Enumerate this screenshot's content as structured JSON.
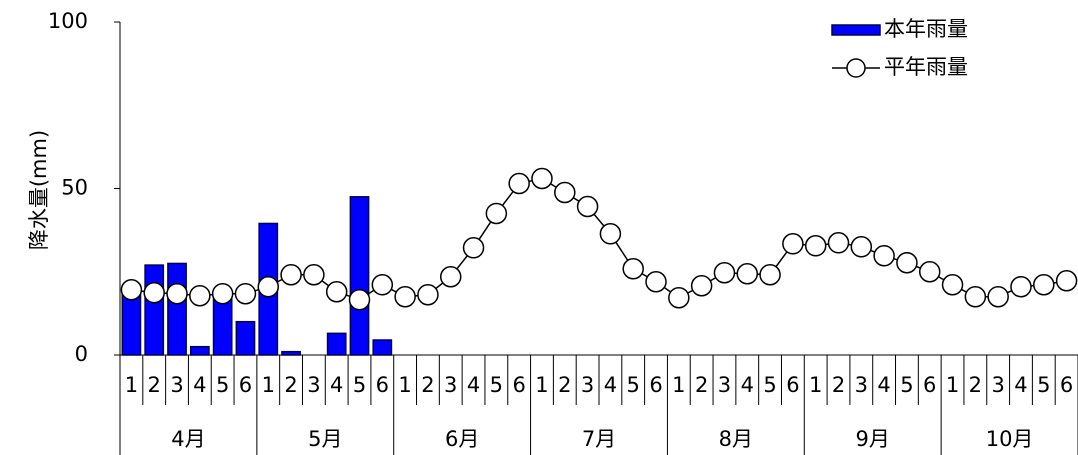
{
  "chart_data": {
    "type": "combo",
    "y_label": "降水量(mm)",
    "categories": [
      "1",
      "2",
      "3",
      "4",
      "5",
      "6",
      "1",
      "2",
      "3",
      "4",
      "5",
      "6",
      "1",
      "2",
      "3",
      "4",
      "5",
      "6",
      "1",
      "2",
      "3",
      "4",
      "5",
      "6",
      "1",
      "2",
      "3",
      "4",
      "5",
      "6",
      "1",
      "2",
      "3",
      "4",
      "5",
      "6",
      "1",
      "2",
      "3",
      "4",
      "5",
      "6"
    ],
    "months": [
      "4月",
      "5月",
      "6月",
      "7月",
      "8月",
      "9月",
      "10月"
    ],
    "ylim": [
      0,
      100
    ],
    "yticks": [
      0,
      50,
      100
    ],
    "legend": "upper right",
    "series": [
      {
        "name": "本年雨量",
        "type": "bar",
        "color": "#0000ff",
        "values": [
          19,
          27,
          27.5,
          2.5,
          18,
          10,
          39.5,
          1,
          0,
          6.5,
          47.5,
          4.5,
          null,
          null,
          null,
          null,
          null,
          null,
          null,
          null,
          null,
          null,
          null,
          null,
          null,
          null,
          null,
          null,
          null,
          null,
          null,
          null,
          null,
          null,
          null,
          null,
          null,
          null,
          null,
          null,
          null,
          null
        ]
      },
      {
        "name": "平年雨量",
        "type": "line",
        "color": "#000000",
        "values": [
          19.6,
          18.7,
          18.4,
          17.8,
          18.4,
          18.4,
          20.5,
          24.1,
          24.1,
          19,
          16.6,
          21.1,
          17.5,
          18.1,
          23.5,
          32.2,
          42.5,
          51.5,
          53,
          48.8,
          44.6,
          36.4,
          25.9,
          22,
          17.2,
          20.8,
          24.7,
          24.4,
          24.1,
          33.4,
          32.8,
          33.7,
          32.5,
          29.8,
          27.7,
          25,
          21.1,
          17.5,
          17.5,
          20.5,
          21.1,
          22.3
        ]
      }
    ]
  }
}
